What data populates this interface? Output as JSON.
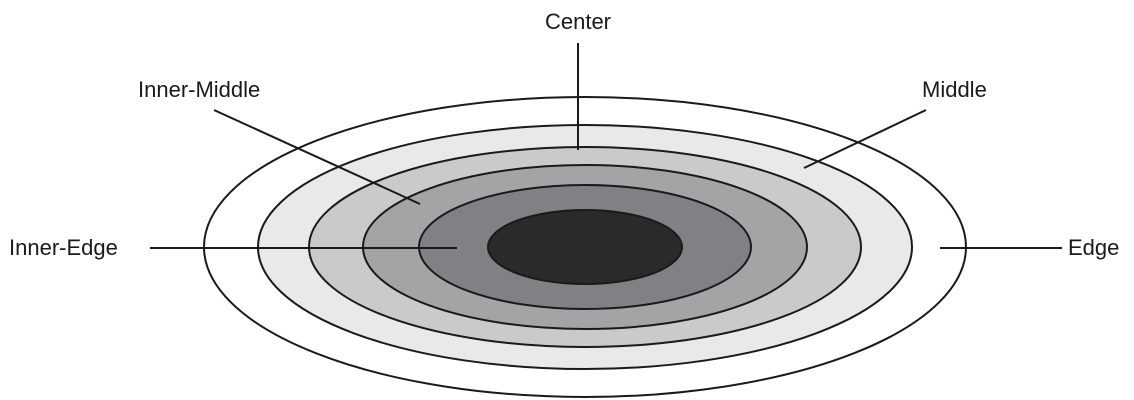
{
  "labels": {
    "center": "Center",
    "inner_middle": "Inner-Middle",
    "middle": "Middle",
    "inner_edge": "Inner-Edge",
    "edge": "Edge"
  },
  "colors": {
    "outline": "#1a1a1a",
    "edge_ring": "#ffffff",
    "middle_ring": "#e9e9ea",
    "inner_middle_ring": "#c9cacb",
    "ring_3": "#a3a4a6",
    "inner_edge_ring": "#808184",
    "center_core": "#2b2a2a"
  }
}
